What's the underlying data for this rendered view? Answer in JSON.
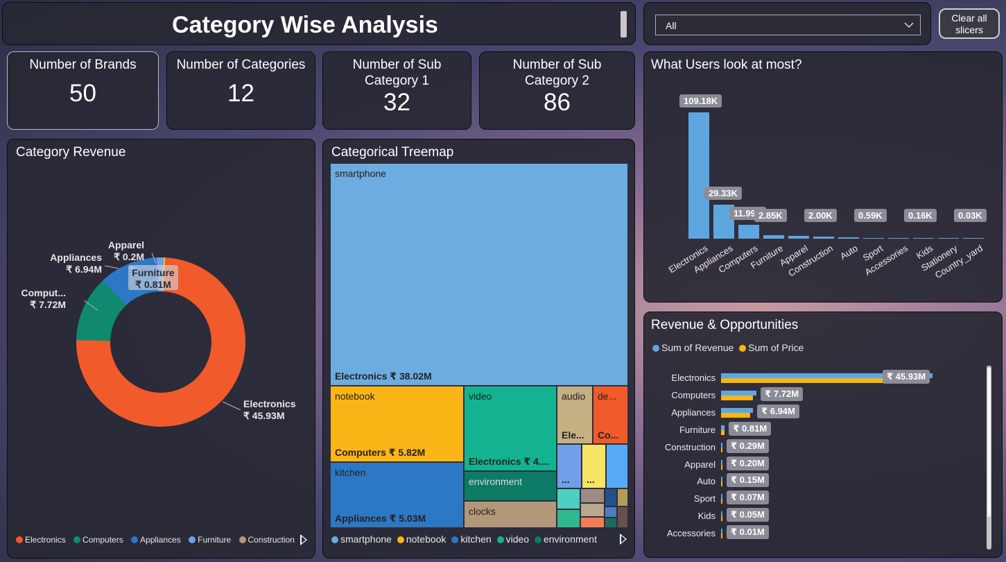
{
  "title": "Category Wise Analysis",
  "slicer": {
    "value": "All"
  },
  "clear_button": "Clear all slicers",
  "kpis": [
    {
      "label": "Number of Brands",
      "value": "50"
    },
    {
      "label": "Number of Categories",
      "value": "12"
    },
    {
      "label": "Number of Sub Category 1",
      "value": "32"
    },
    {
      "label": "Number of Sub Category 2",
      "value": "86"
    }
  ],
  "colors": {
    "electronics": "#f15a2a",
    "computers": "#0f8a6e",
    "appliances": "#2c78c4",
    "furniture": "#6f9fe8",
    "construction": "#b3977a",
    "apparel": "#f2c12e"
  },
  "donut": {
    "title": "Category Revenue",
    "labels": [
      {
        "name": "Electronics",
        "value": "₹ 45.93M"
      },
      {
        "name": "Comput...",
        "value": "₹ 7.72M"
      },
      {
        "name": "Appliances",
        "value": "₹ 6.94M"
      },
      {
        "name": "Apparel",
        "value": "₹ 0.2M"
      },
      {
        "name": "Furniture",
        "value": "₹ 0.81M"
      }
    ],
    "legend": [
      "Electronics",
      "Computers",
      "Appliances",
      "Furniture",
      "Construction"
    ]
  },
  "treemap": {
    "title": "Categorical Treemap",
    "cells": {
      "smartphone": "smartphone",
      "electronics_val": "Electronics ₹ 38.02M",
      "notebook": "notebook",
      "computers_val": "Computers ₹ 5.82M",
      "video": "video",
      "electronics_val2": "Electronics ₹ 4....",
      "audio": "audio",
      "audio_val": "Ele...",
      "de": "de...",
      "de_val": "Co...",
      "kitchen": "kitchen",
      "appliances_val": "Appliances ₹ 5.03M",
      "environment": "environment",
      "clocks": "clocks",
      "dots1": "...",
      "dots2": "..."
    },
    "legend": [
      "smartphone",
      "notebook",
      "kitchen",
      "video",
      "environment"
    ]
  },
  "chart_data": [
    {
      "type": "pie",
      "title": "Category Revenue",
      "categories": [
        "Electronics",
        "Computers",
        "Appliances",
        "Furniture",
        "Apparel"
      ],
      "values": [
        45.93,
        7.72,
        6.94,
        0.81,
        0.2
      ],
      "unit": "₹ M"
    },
    {
      "type": "bar",
      "title": "What Users look at most?",
      "categories": [
        "Electronics",
        "Appliances",
        "Computers",
        "Furniture",
        "Apparel",
        "Construction",
        "Auto",
        "Sport",
        "Accessories",
        "Kids",
        "Stationery",
        "Country_yard"
      ],
      "values": [
        109.18,
        29.33,
        11.99,
        2.85,
        2.3,
        2.0,
        1.1,
        0.59,
        0.3,
        0.16,
        0.08,
        0.03
      ],
      "labels": [
        "109.18K",
        "29.33K",
        "11.99K",
        "2.85K",
        "",
        "2.00K",
        "",
        "0.59K",
        "",
        "0.16K",
        "",
        "0.03K"
      ],
      "ylim": [
        0,
        120
      ]
    },
    {
      "type": "bar",
      "title": "Revenue & Opportunities",
      "orientation": "horizontal",
      "categories": [
        "Electronics",
        "Computers",
        "Appliances",
        "Furniture",
        "Construction",
        "Apparel",
        "Auto",
        "Sport",
        "Kids",
        "Accessories"
      ],
      "series": [
        {
          "name": "Sum of Revenue",
          "values": [
            45.93,
            7.72,
            6.94,
            0.81,
            0.29,
            0.2,
            0.15,
            0.07,
            0.05,
            0.01
          ]
        },
        {
          "name": "Sum of Price",
          "values": [
            40.0,
            7.0,
            6.4,
            0.7,
            0.25,
            0.17,
            0.13,
            0.06,
            0.04,
            0.01
          ]
        }
      ],
      "labels": [
        "₹ 45.93M",
        "₹ 7.72M",
        "₹ 6.94M",
        "₹ 0.81M",
        "₹ 0.29M",
        "₹ 0.20M",
        "₹ 0.15M",
        "₹ 0.07M",
        "₹ 0.05M",
        "₹ 0.01M"
      ],
      "legend_position": "top-left"
    }
  ],
  "legend_colors": [
    "#f15a2a",
    "#0f8a6e",
    "#2c78c4",
    "#6f9fe8",
    "#b3977a"
  ],
  "treemap_legend_colors": [
    "#6dace0",
    "#fbb516",
    "#2c78c4",
    "#13b391",
    "#0d7a66"
  ],
  "hbar_colors": {
    "revenue": "#5ea6e0",
    "price": "#f8b514"
  },
  "vbar_color": "#5ea6e0"
}
